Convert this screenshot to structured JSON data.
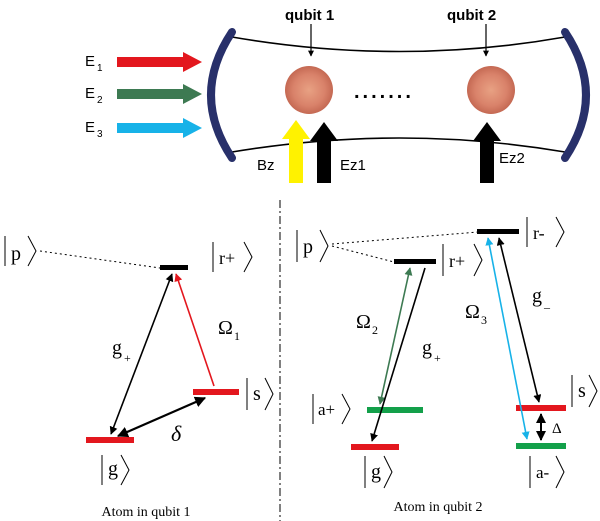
{
  "top": {
    "fields": [
      "E",
      "E",
      "E"
    ],
    "field_subscripts": [
      "1",
      "2",
      "3"
    ],
    "qubit1_label": "qubit 1",
    "qubit2_label": "qubit 2",
    "dots": ".......",
    "bz_label": "Bz",
    "ez1_label": "Ez1",
    "ez2_label": "Ez2"
  },
  "left": {
    "p": "p",
    "r_plus": "r+",
    "s": "s",
    "g": "g",
    "coupling_g": "g",
    "coupling_g_sub": "+",
    "omega": "Ω",
    "omega_sub": "1",
    "delta": "δ",
    "caption": "Atom in qubit 1"
  },
  "right": {
    "p": "p",
    "r_plus": "r+",
    "r_minus": "r-",
    "a_plus": "a+",
    "g": "g",
    "s": "s",
    "a_minus": "a-",
    "omega2": "Ω",
    "omega2_sub": "2",
    "omega3": "Ω",
    "omega3_sub": "3",
    "coupling_g_plus": "g",
    "coupling_g_plus_sub": "+",
    "coupling_g_minus": "g",
    "coupling_g_minus_sub": "–",
    "detuning": "Δ",
    "caption": "Atom in qubit 2"
  },
  "colors": {
    "red": "#e3171e",
    "green": "#3d7a52",
    "cyan": "#17b2e8",
    "yellow": "#fff200",
    "navy": "#28306a",
    "black": "#000000",
    "level_green": "#13a04a"
  }
}
